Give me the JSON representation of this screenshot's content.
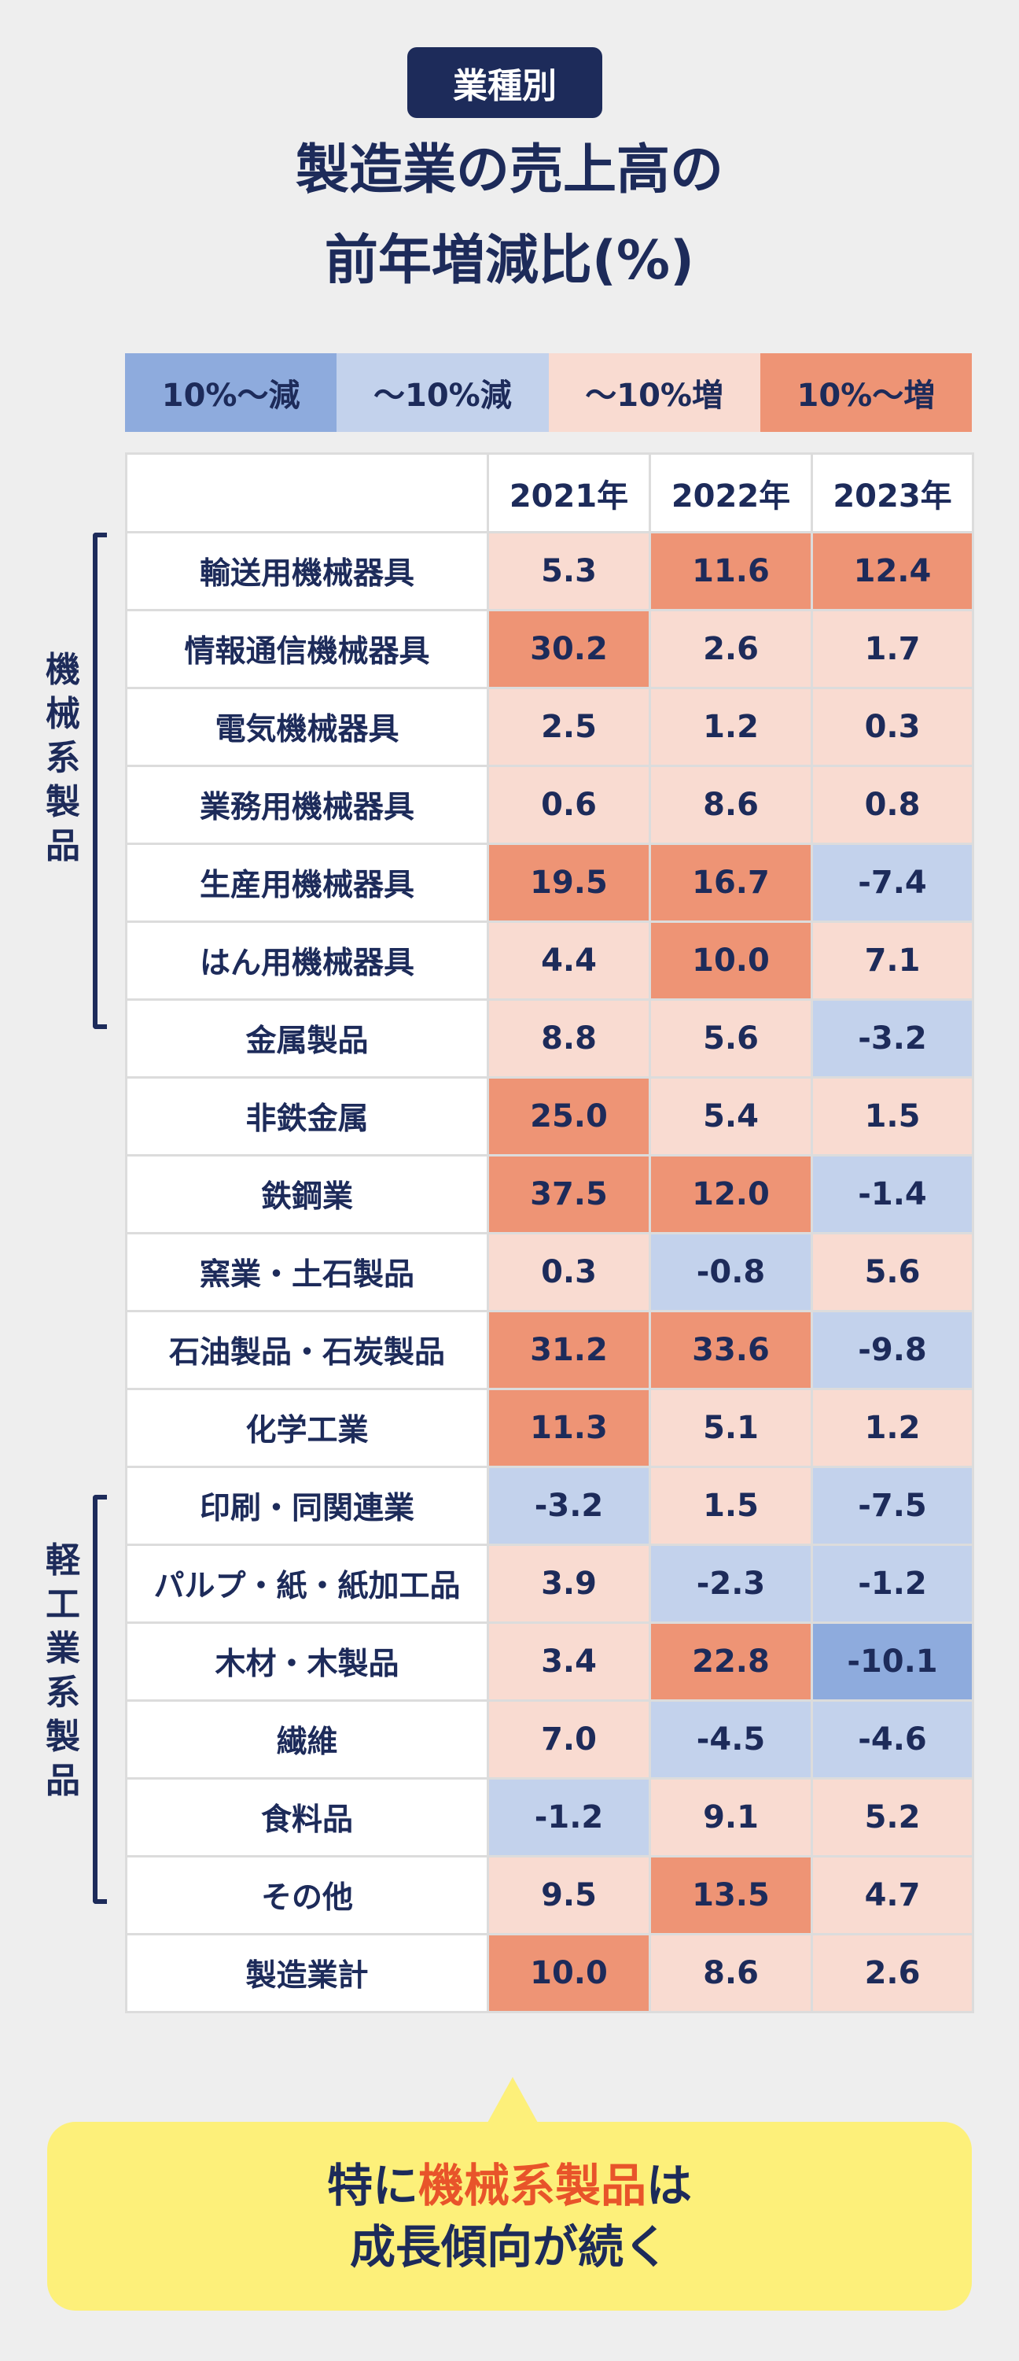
{
  "badge": "業種別",
  "title": {
    "line1": "製造業の売上高の",
    "line2": "前年増減比(%)"
  },
  "legend": [
    {
      "label": "10%〜減",
      "color": "#8eabdd"
    },
    {
      "label": "〜10%減",
      "color": "#c3d2ec"
    },
    {
      "label": "〜10%増",
      "color": "#f9dbd1"
    },
    {
      "label": "10%〜増",
      "color": "#ee9475"
    }
  ],
  "groups": {
    "machinery": "機械系製品",
    "light": "軽工業系製品"
  },
  "callout": {
    "prefix": "特に",
    "highlight": "機械系製品",
    "suffix": "は",
    "line2": "成長傾向が続く"
  },
  "chart_data": {
    "type": "table",
    "title": "製造業の売上高の前年増減比(%)",
    "columns": [
      "2021年",
      "2022年",
      "2023年"
    ],
    "rows": [
      {
        "name": "輸送用機械器具",
        "values": [
          "5.3",
          "11.6",
          "12.4"
        ]
      },
      {
        "name": "情報通信機械器具",
        "values": [
          "30.2",
          "2.6",
          "1.7"
        ]
      },
      {
        "name": "電気機械器具",
        "values": [
          "2.5",
          "1.2",
          "0.3"
        ]
      },
      {
        "name": "業務用機械器具",
        "values": [
          "0.6",
          "8.6",
          "0.8"
        ]
      },
      {
        "name": "生産用機械器具",
        "values": [
          "19.5",
          "16.7",
          "-7.4"
        ]
      },
      {
        "name": "はん用機械器具",
        "values": [
          "4.4",
          "10.0",
          "7.1"
        ]
      },
      {
        "name": "金属製品",
        "values": [
          "8.8",
          "5.6",
          "-3.2"
        ]
      },
      {
        "name": "非鉄金属",
        "values": [
          "25.0",
          "5.4",
          "1.5"
        ]
      },
      {
        "name": "鉄鋼業",
        "values": [
          "37.5",
          "12.0",
          "-1.4"
        ]
      },
      {
        "name": "窯業・土石製品",
        "values": [
          "0.3",
          "-0.8",
          "5.6"
        ]
      },
      {
        "name": "石油製品・石炭製品",
        "values": [
          "31.2",
          "33.6",
          "-9.8"
        ]
      },
      {
        "name": "化学工業",
        "values": [
          "11.3",
          "5.1",
          "1.2"
        ]
      },
      {
        "name": "印刷・同関連業",
        "values": [
          "-3.2",
          "1.5",
          "-7.5"
        ]
      },
      {
        "name": "パルプ・紙・紙加工品",
        "values": [
          "3.9",
          "-2.3",
          "-1.2"
        ]
      },
      {
        "name": "木材・木製品",
        "values": [
          "3.4",
          "22.8",
          "-10.1"
        ]
      },
      {
        "name": "繊維",
        "values": [
          "7.0",
          "-4.5",
          "-4.6"
        ]
      },
      {
        "name": "食料品",
        "values": [
          "-1.2",
          "9.1",
          "5.2"
        ]
      },
      {
        "name": "その他",
        "values": [
          "9.5",
          "13.5",
          "4.7"
        ]
      },
      {
        "name": "製造業計",
        "values": [
          "10.0",
          "8.6",
          "2.6"
        ]
      }
    ]
  }
}
